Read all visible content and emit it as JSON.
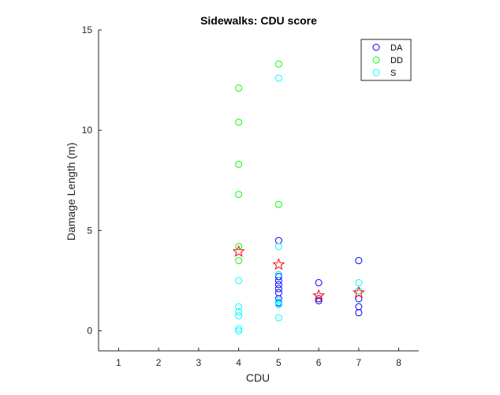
{
  "chart_data": {
    "type": "scatter",
    "title": "Sidewalks: CDU score",
    "xlabel": "CDU",
    "ylabel": "Damage Length (m)",
    "xlim": [
      0.5,
      8.5
    ],
    "ylim": [
      -1,
      15
    ],
    "xticks": [
      1,
      2,
      3,
      4,
      5,
      6,
      7,
      8
    ],
    "yticks": [
      0,
      5,
      10,
      15
    ],
    "grid": false,
    "legend_position": "top-right",
    "series": [
      {
        "name": "DA",
        "marker": "circle",
        "color": "#0000ff",
        "points": [
          [
            5,
            4.5
          ],
          [
            5,
            2.8
          ],
          [
            5,
            2.7
          ],
          [
            5,
            2.5
          ],
          [
            5,
            2.3
          ],
          [
            5,
            2.1
          ],
          [
            5,
            1.9
          ],
          [
            5,
            1.6
          ],
          [
            5,
            1.4
          ],
          [
            6,
            2.4
          ],
          [
            6,
            1.6
          ],
          [
            6,
            1.5
          ],
          [
            7,
            3.5
          ],
          [
            7,
            1.6
          ],
          [
            7,
            1.2
          ],
          [
            7,
            0.9
          ]
        ]
      },
      {
        "name": "DD",
        "marker": "circle",
        "color": "#00ff00",
        "points": [
          [
            4,
            12.1
          ],
          [
            4,
            10.4
          ],
          [
            4,
            8.3
          ],
          [
            4,
            6.8
          ],
          [
            4,
            4.2
          ],
          [
            4,
            3.5
          ],
          [
            5,
            13.3
          ],
          [
            5,
            6.3
          ]
        ]
      },
      {
        "name": "S",
        "marker": "circle",
        "color": "#00ffff",
        "points": [
          [
            4,
            2.5
          ],
          [
            4,
            1.2
          ],
          [
            4,
            0.95
          ],
          [
            4,
            0.75
          ],
          [
            4,
            0.1
          ],
          [
            4,
            0.0
          ],
          [
            5,
            12.6
          ],
          [
            5,
            4.2
          ],
          [
            5,
            2.8
          ],
          [
            5,
            1.5
          ],
          [
            5,
            1.35
          ],
          [
            5,
            1.3
          ],
          [
            5,
            0.65
          ],
          [
            7,
            2.4
          ],
          [
            7,
            2.0
          ]
        ]
      },
      {
        "marker": "star",
        "color": "#ff0000",
        "points": [
          [
            4,
            3.95
          ],
          [
            5,
            3.3
          ],
          [
            6,
            1.75
          ],
          [
            7,
            1.9
          ]
        ]
      }
    ]
  }
}
